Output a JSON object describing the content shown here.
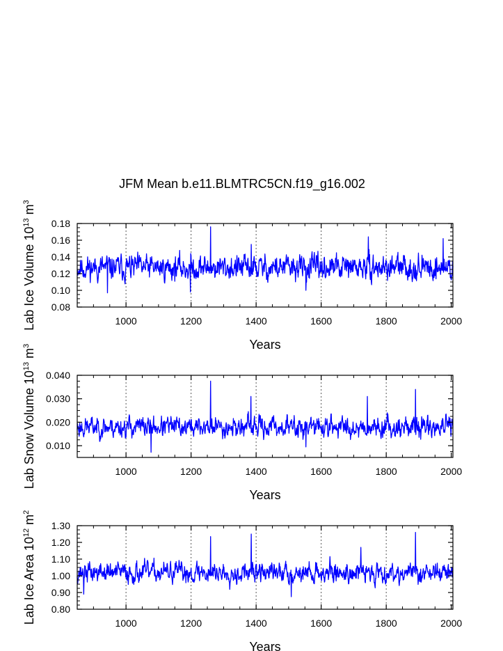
{
  "figure_title": "JFM Mean b.e11.BLMTRC5CN.f19_g16.002",
  "series_color": "#0000ff",
  "chart_data": [
    {
      "type": "line",
      "name": "Lab Ice Volume",
      "title": "JFM Mean b.e11.BLMTRC5CN.f19_g16.002",
      "xlabel": "Years",
      "ylabel": {
        "text": "Lab Ice Volume 10",
        "exp": "13",
        "unit": " m",
        "unit_exp": "3"
      },
      "xlim": [
        850,
        2005
      ],
      "ylim": [
        0.08,
        0.18
      ],
      "xticks": [
        1000,
        1200,
        1400,
        1600,
        1800,
        2000
      ],
      "yticks": [
        0.08,
        0.1,
        0.12,
        0.14,
        0.16,
        0.18
      ],
      "ytick_labels": [
        "0.08",
        "0.10",
        "0.12",
        "0.14",
        "0.16",
        "0.18"
      ],
      "grid_x": [
        1000,
        1200,
        1400,
        1600,
        1800
      ],
      "mean": 0.127,
      "spread": 0.011,
      "seed": 11,
      "spikes": [
        [
          1260,
          0.176
        ],
        [
          1385,
          0.155
        ],
        [
          1745,
          0.164
        ],
        [
          1975,
          0.162
        ],
        [
          943,
          0.097
        ],
        [
          1198,
          0.098
        ],
        [
          1553,
          0.1
        ]
      ]
    },
    {
      "type": "line",
      "name": "Lab Snow Volume",
      "xlabel": "Years",
      "ylabel": {
        "text": "Lab Snow Volume 10",
        "exp": "13",
        "unit": " m",
        "unit_exp": "3"
      },
      "xlim": [
        850,
        2005
      ],
      "ylim": [
        0.005,
        0.04
      ],
      "xticks": [
        1000,
        1200,
        1400,
        1600,
        1800,
        2000
      ],
      "yticks": [
        0.01,
        0.02,
        0.03,
        0.04
      ],
      "ytick_labels": [
        "0.010",
        "0.020",
        "0.030",
        "0.040"
      ],
      "grid_x": [
        1000,
        1200,
        1400,
        1600,
        1800
      ],
      "mean": 0.018,
      "spread": 0.0032,
      "seed": 23,
      "spikes": [
        [
          1260,
          0.0375
        ],
        [
          1890,
          0.034
        ],
        [
          1742,
          0.031
        ],
        [
          1384,
          0.031
        ],
        [
          1077,
          0.0072
        ],
        [
          1553,
          0.0095
        ]
      ]
    },
    {
      "type": "line",
      "name": "Lab Ice Area",
      "xlabel": "Years",
      "ylabel": {
        "text": "Lab Ice Area 10",
        "exp": "12",
        "unit": " m",
        "unit_exp": "2"
      },
      "xlim": [
        850,
        2005
      ],
      "ylim": [
        0.8,
        1.3
      ],
      "xticks": [
        1000,
        1200,
        1400,
        1600,
        1800,
        2000
      ],
      "yticks": [
        0.8,
        0.9,
        1.0,
        1.1,
        1.2,
        1.3
      ],
      "ytick_labels": [
        "0.80",
        "0.90",
        "1.00",
        "1.10",
        "1.20",
        "1.30"
      ],
      "grid_x": [
        1000,
        1200,
        1400,
        1600,
        1800
      ],
      "mean": 1.02,
      "spread": 0.045,
      "seed": 37,
      "spikes": [
        [
          1260,
          1.235
        ],
        [
          1385,
          1.25
        ],
        [
          1890,
          1.26
        ],
        [
          1722,
          1.17
        ],
        [
          1508,
          0.875
        ],
        [
          870,
          0.89
        ]
      ]
    }
  ]
}
